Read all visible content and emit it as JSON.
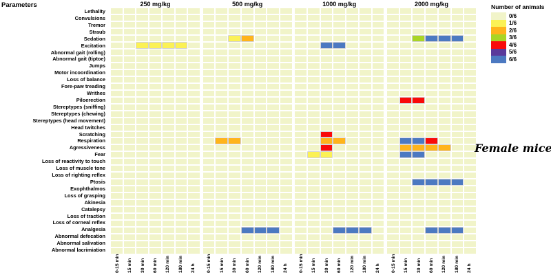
{
  "chart_data": {
    "type": "heatmap",
    "title_left": "Parameters",
    "annotation": "Female mice",
    "doses": [
      "250 mg/kg",
      "500 mg/kg",
      "1000 mg/kg",
      "2000 mg/kg"
    ],
    "time_points": [
      "0-15 min",
      "15 min",
      "30 min",
      "60 min",
      "120 min",
      "180 min",
      "24 h"
    ],
    "parameters": [
      "Lethality",
      "Convulsions",
      "Tremor",
      "Straub",
      "Sedation",
      "Excitation",
      "Abnormal gait (rolling)",
      "Abnormal gait (tiptoe)",
      "Jumps",
      "Motor incoordination",
      "Loss of balance",
      "Fore-paw treading",
      "Writhes",
      "Piloerection",
      "Stereptypes (sniffing)",
      "Stereptypes (chewing)",
      "Stereptypes (head movement)",
      "Head twitches",
      "Scratching",
      "Respiration",
      "Agressiveness",
      "Fear",
      "Loss of reactivity to touch",
      "Loss of muscle tone",
      "Loss of righting reflex",
      "Ptosis",
      "Exophthalmos",
      "Loss of grasping",
      "Akinesia",
      "Catalepsy",
      "Loss of traction",
      "Loss of corneal reflex",
      "Analgesia",
      "Abnormal defecation",
      "Abnormal salivation",
      "Abnormal lacrimiation"
    ],
    "legend": {
      "title": "Number of animals",
      "entries": [
        {
          "label": "0/6",
          "color": "#F1F4C9"
        },
        {
          "label": "1/6",
          "color": "#FBF155"
        },
        {
          "label": "2/6",
          "color": "#FFB41B"
        },
        {
          "label": "3/6",
          "color": "#A9D525"
        },
        {
          "label": "4/6",
          "color": "#F90A0A"
        },
        {
          "label": "5/6",
          "color": "#5A3A9B"
        },
        {
          "label": "6/6",
          "color": "#4C79C1"
        }
      ]
    },
    "default_value": "0/6",
    "cells": [
      {
        "dose": "250 mg/kg",
        "parameter": "Excitation",
        "time": "30 min",
        "value": "1/6"
      },
      {
        "dose": "250 mg/kg",
        "parameter": "Excitation",
        "time": "60 min",
        "value": "1/6"
      },
      {
        "dose": "250 mg/kg",
        "parameter": "Excitation",
        "time": "120 min",
        "value": "1/6"
      },
      {
        "dose": "250 mg/kg",
        "parameter": "Excitation",
        "time": "180 min",
        "value": "1/6"
      },
      {
        "dose": "500 mg/kg",
        "parameter": "Sedation",
        "time": "30 min",
        "value": "1/6"
      },
      {
        "dose": "500 mg/kg",
        "parameter": "Sedation",
        "time": "60 min",
        "value": "2/6"
      },
      {
        "dose": "500 mg/kg",
        "parameter": "Respiration",
        "time": "15 min",
        "value": "2/6"
      },
      {
        "dose": "500 mg/kg",
        "parameter": "Respiration",
        "time": "30 min",
        "value": "2/6"
      },
      {
        "dose": "500 mg/kg",
        "parameter": "Analgesia",
        "time": "60 min",
        "value": "6/6"
      },
      {
        "dose": "500 mg/kg",
        "parameter": "Analgesia",
        "time": "120 min",
        "value": "6/6"
      },
      {
        "dose": "500 mg/kg",
        "parameter": "Analgesia",
        "time": "180 min",
        "value": "6/6"
      },
      {
        "dose": "1000 mg/kg",
        "parameter": "Excitation",
        "time": "30 min",
        "value": "6/6"
      },
      {
        "dose": "1000 mg/kg",
        "parameter": "Excitation",
        "time": "60 min",
        "value": "6/6"
      },
      {
        "dose": "1000 mg/kg",
        "parameter": "Scratching",
        "time": "30 min",
        "value": "4/6"
      },
      {
        "dose": "1000 mg/kg",
        "parameter": "Respiration",
        "time": "30 min",
        "value": "2/6"
      },
      {
        "dose": "1000 mg/kg",
        "parameter": "Respiration",
        "time": "60 min",
        "value": "2/6"
      },
      {
        "dose": "1000 mg/kg",
        "parameter": "Agressiveness",
        "time": "30 min",
        "value": "4/6"
      },
      {
        "dose": "1000 mg/kg",
        "parameter": "Fear",
        "time": "15 min",
        "value": "1/6"
      },
      {
        "dose": "1000 mg/kg",
        "parameter": "Fear",
        "time": "30 min",
        "value": "1/6"
      },
      {
        "dose": "1000 mg/kg",
        "parameter": "Analgesia",
        "time": "60 min",
        "value": "6/6"
      },
      {
        "dose": "1000 mg/kg",
        "parameter": "Analgesia",
        "time": "120 min",
        "value": "6/6"
      },
      {
        "dose": "1000 mg/kg",
        "parameter": "Analgesia",
        "time": "180 min",
        "value": "6/6"
      },
      {
        "dose": "2000 mg/kg",
        "parameter": "Sedation",
        "time": "30 min",
        "value": "3/6"
      },
      {
        "dose": "2000 mg/kg",
        "parameter": "Sedation",
        "time": "60 min",
        "value": "6/6"
      },
      {
        "dose": "2000 mg/kg",
        "parameter": "Sedation",
        "time": "120 min",
        "value": "6/6"
      },
      {
        "dose": "2000 mg/kg",
        "parameter": "Sedation",
        "time": "180 min",
        "value": "6/6"
      },
      {
        "dose": "2000 mg/kg",
        "parameter": "Piloerection",
        "time": "15 min",
        "value": "4/6"
      },
      {
        "dose": "2000 mg/kg",
        "parameter": "Piloerection",
        "time": "30 min",
        "value": "4/6"
      },
      {
        "dose": "2000 mg/kg",
        "parameter": "Respiration",
        "time": "15 min",
        "value": "6/6"
      },
      {
        "dose": "2000 mg/kg",
        "parameter": "Respiration",
        "time": "30 min",
        "value": "6/6"
      },
      {
        "dose": "2000 mg/kg",
        "parameter": "Respiration",
        "time": "60 min",
        "value": "4/6"
      },
      {
        "dose": "2000 mg/kg",
        "parameter": "Agressiveness",
        "time": "15 min",
        "value": "2/6"
      },
      {
        "dose": "2000 mg/kg",
        "parameter": "Agressiveness",
        "time": "30 min",
        "value": "2/6"
      },
      {
        "dose": "2000 mg/kg",
        "parameter": "Agressiveness",
        "time": "60 min",
        "value": "2/6"
      },
      {
        "dose": "2000 mg/kg",
        "parameter": "Agressiveness",
        "time": "120 min",
        "value": "2/6"
      },
      {
        "dose": "2000 mg/kg",
        "parameter": "Fear",
        "time": "15 min",
        "value": "6/6"
      },
      {
        "dose": "2000 mg/kg",
        "parameter": "Fear",
        "time": "30 min",
        "value": "6/6"
      },
      {
        "dose": "2000 mg/kg",
        "parameter": "Ptosis",
        "time": "30 min",
        "value": "6/6"
      },
      {
        "dose": "2000 mg/kg",
        "parameter": "Ptosis",
        "time": "60 min",
        "value": "6/6"
      },
      {
        "dose": "2000 mg/kg",
        "parameter": "Ptosis",
        "time": "120 min",
        "value": "6/6"
      },
      {
        "dose": "2000 mg/kg",
        "parameter": "Ptosis",
        "time": "180 min",
        "value": "6/6"
      },
      {
        "dose": "2000 mg/kg",
        "parameter": "Analgesia",
        "time": "60 min",
        "value": "6/6"
      },
      {
        "dose": "2000 mg/kg",
        "parameter": "Analgesia",
        "time": "120 min",
        "value": "6/6"
      },
      {
        "dose": "2000 mg/kg",
        "parameter": "Analgesia",
        "time": "180 min",
        "value": "6/6"
      }
    ]
  }
}
